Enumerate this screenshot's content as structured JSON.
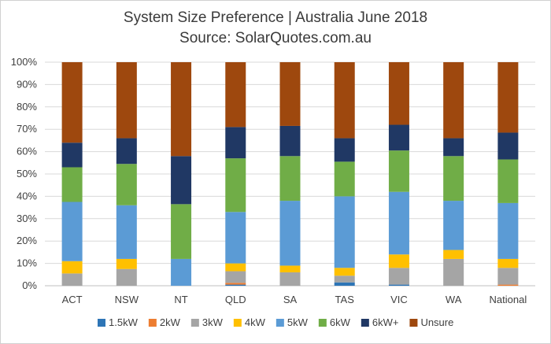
{
  "chart_data": {
    "type": "stacked-bar",
    "title": "System Size Preference  | Australia June 2018",
    "subtitle": "Source: SolarQuotes.com.au",
    "xlabel": "",
    "ylabel": "",
    "ylim": [
      0,
      100
    ],
    "y_ticks": [
      "0%",
      "10%",
      "20%",
      "30%",
      "40%",
      "50%",
      "60%",
      "70%",
      "80%",
      "90%",
      "100%"
    ],
    "grid": true,
    "legend_position": "bottom",
    "categories": [
      "ACT",
      "NSW",
      "NT",
      "QLD",
      "SA",
      "TAS",
      "VIC",
      "WA",
      "National"
    ],
    "series": [
      {
        "name": "1.5kW",
        "color": "#2e75b6",
        "values": [
          0,
          0,
          0,
          0.5,
          0,
          1.5,
          0.5,
          0,
          0
        ]
      },
      {
        "name": "2kW",
        "color": "#ed7d31",
        "values": [
          0,
          0,
          0,
          0.8,
          0,
          0,
          0,
          0,
          0.5
        ]
      },
      {
        "name": "3kW",
        "color": "#a5a5a5",
        "values": [
          5.5,
          7.5,
          0,
          5.2,
          6,
          3,
          7.5,
          12,
          7.5
        ]
      },
      {
        "name": "4kW",
        "color": "#ffc000",
        "values": [
          5.5,
          4.5,
          0,
          3.5,
          3,
          3.5,
          6,
          4,
          4
        ]
      },
      {
        "name": "5kW",
        "color": "#5b9bd5",
        "values": [
          26.5,
          24,
          12,
          23,
          29,
          32,
          28,
          22,
          25
        ]
      },
      {
        "name": "6kW",
        "color": "#70ad47",
        "values": [
          15.5,
          18.5,
          24.5,
          24,
          20,
          15.5,
          18.5,
          20,
          19.5
        ]
      },
      {
        "name": "6kW+",
        "color": "#203864",
        "values": [
          11,
          11.5,
          21.5,
          14,
          13.5,
          10.5,
          11.5,
          8,
          12
        ]
      },
      {
        "name": "Unsure",
        "color": "#9e480e",
        "values": [
          36,
          34,
          42,
          29,
          28.5,
          34,
          28,
          34,
          31.5
        ]
      }
    ]
  }
}
